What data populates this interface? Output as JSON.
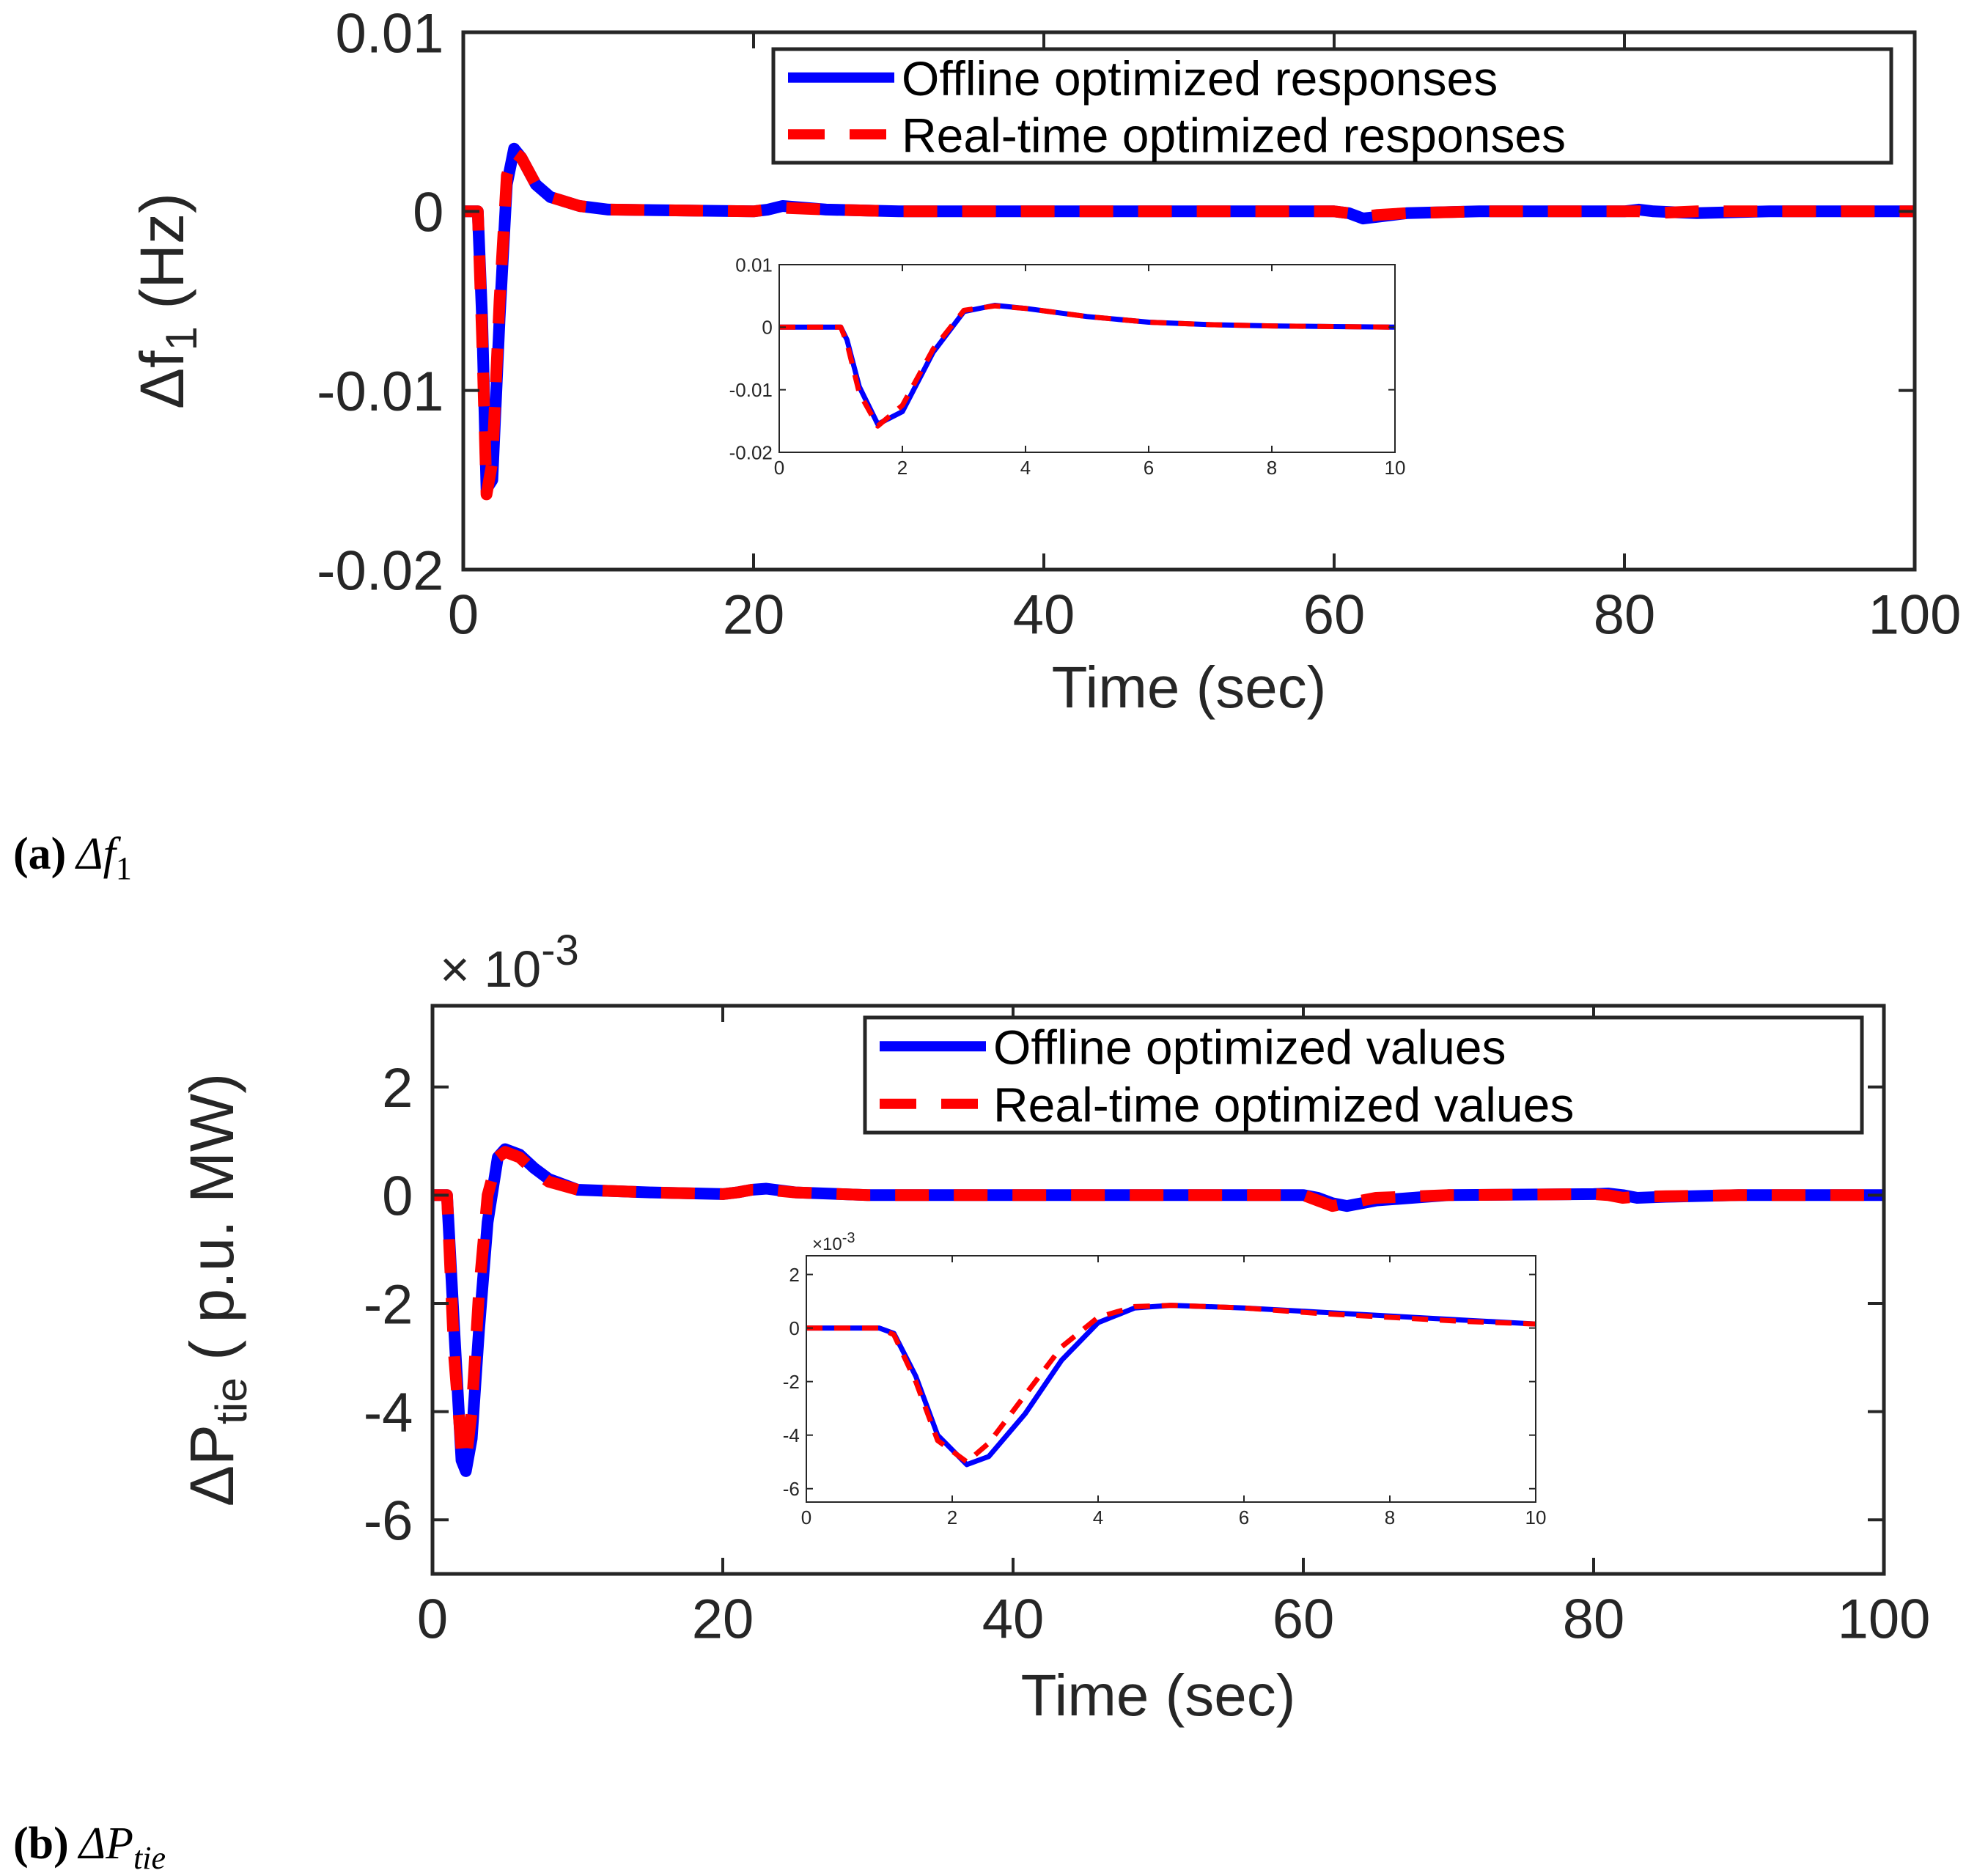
{
  "colors": {
    "offline": "#0000ff",
    "realtime": "#ff0000",
    "axis": "#262626"
  },
  "chart_data": [
    {
      "id": "a",
      "type": "line",
      "caption_label": "(a)",
      "caption_math": "Δf",
      "caption_sub": "1",
      "ylabel_main": "Δf",
      "ylabel_sub": "1",
      "ylabel_tail": " (Hz)",
      "xlabel": "Time (sec)",
      "xlim": [
        0,
        100
      ],
      "ylim": [
        -0.02,
        0.01
      ],
      "xticks": [
        0,
        20,
        40,
        60,
        80,
        100
      ],
      "xtick_labels": [
        "0",
        "20",
        "40",
        "60",
        "80",
        "100"
      ],
      "yticks": [
        -0.02,
        -0.01,
        0,
        0.01
      ],
      "ytick_labels": [
        "-0.02",
        "-0.01",
        "0",
        "0.01"
      ],
      "legend": [
        "Offline optimized responses",
        "Real-time optimized responses"
      ],
      "legend_position": "top-right",
      "series": [
        {
          "name": "Offline optimized responses",
          "x": [
            0,
            1,
            1.3,
            1.6,
            2,
            2.5,
            3,
            3.5,
            4,
            5,
            6,
            8,
            10,
            20,
            21,
            22,
            25,
            30,
            40,
            50,
            60,
            61,
            62,
            63,
            65,
            70,
            80,
            81,
            82,
            85,
            90,
            100
          ],
          "y": [
            0,
            0,
            -0.006,
            -0.0155,
            -0.015,
            -0.006,
            0.0015,
            0.0035,
            0.003,
            0.0015,
            0.0008,
            0.0003,
            0.0001,
            0,
            0.0001,
            0.0003,
            0.0001,
            0,
            0,
            0,
            0,
            -0.0001,
            -0.0004,
            -0.0003,
            -0.0001,
            0,
            0,
            0.0001,
            0,
            -0.0001,
            0,
            0
          ]
        },
        {
          "name": "Real-time optimized responses",
          "x": [
            0,
            1,
            1.3,
            1.6,
            2,
            2.5,
            3,
            3.5,
            4,
            5,
            6,
            8,
            10,
            20,
            21,
            22,
            25,
            30,
            40,
            50,
            60,
            61,
            62,
            63,
            65,
            70,
            80,
            81,
            82,
            85,
            90,
            100
          ],
          "y": [
            0,
            0,
            -0.007,
            -0.0158,
            -0.014,
            -0.005,
            0.002,
            0.0033,
            0.003,
            0.0015,
            0.0008,
            0.0003,
            0.0001,
            0,
            0.0001,
            0.0002,
            0.0001,
            0,
            0,
            0,
            0,
            -0.0001,
            -0.0003,
            -0.0002,
            -0.0001,
            0,
            0,
            0,
            -0.0001,
            0,
            0,
            0
          ]
        }
      ],
      "inset": {
        "xlim": [
          0,
          10
        ],
        "ylim": [
          -0.02,
          0.01
        ],
        "xticks": [
          0,
          2,
          4,
          6,
          8,
          10
        ],
        "xtick_labels": [
          "0",
          "2",
          "4",
          "6",
          "8",
          "10"
        ],
        "yticks": [
          -0.02,
          -0.01,
          0,
          0.01
        ],
        "ytick_labels": [
          "-0.02",
          "-0.01",
          "0",
          "0.01"
        ],
        "series": [
          {
            "name": "Offline optimized responses",
            "x": [
              0,
              1,
              1.1,
              1.3,
              1.6,
              2,
              2.5,
              3,
              3.5,
              4,
              5,
              6,
              7,
              8,
              9,
              10
            ],
            "y": [
              0,
              0,
              -0.002,
              -0.0095,
              -0.0155,
              -0.0135,
              -0.004,
              0.0025,
              0.0035,
              0.003,
              0.0017,
              0.0008,
              0.0004,
              0.0002,
              0.0001,
              0
            ]
          },
          {
            "name": "Real-time optimized responses",
            "x": [
              0,
              1,
              1.1,
              1.3,
              1.6,
              2,
              2.5,
              3,
              3.5,
              4,
              5,
              6,
              7,
              8,
              9,
              10
            ],
            "y": [
              0,
              0,
              -0.0025,
              -0.0105,
              -0.0158,
              -0.0125,
              -0.0035,
              0.0027,
              0.0034,
              0.003,
              0.0017,
              0.0008,
              0.0004,
              0.0002,
              0.0001,
              0
            ]
          }
        ]
      }
    },
    {
      "id": "b",
      "type": "line",
      "caption_label": "(b)",
      "caption_math": "ΔP",
      "caption_sub": "tie",
      "ylabel_main": "ΔP",
      "ylabel_sub": "tie",
      "ylabel_tail": " ( p.u. MW)",
      "xlabel": "Time (sec)",
      "multiplier": "× 10",
      "multiplier_exp": "-3",
      "xlim": [
        0,
        100
      ],
      "ylim": [
        -7,
        3.5
      ],
      "xticks": [
        0,
        20,
        40,
        60,
        80,
        100
      ],
      "xtick_labels": [
        "0",
        "20",
        "40",
        "60",
        "80",
        "100"
      ],
      "yticks": [
        -6,
        -4,
        -2,
        0,
        2
      ],
      "ytick_labels": [
        "-6",
        "-4",
        "-2",
        "0",
        "2"
      ],
      "legend": [
        "Offline optimized values",
        "Real-time optimized values"
      ],
      "legend_position": "top-right",
      "series": [
        {
          "name": "Offline optimized values",
          "x": [
            0,
            1,
            1.5,
            2,
            2.3,
            2.7,
            3.2,
            3.8,
            4.5,
            5,
            6,
            7,
            8,
            10,
            15,
            20,
            21,
            22,
            23,
            25,
            30,
            40,
            50,
            60,
            61,
            62,
            63,
            65,
            70,
            80,
            81,
            82,
            83,
            85,
            90,
            100
          ],
          "y": [
            0,
            0,
            -2.5,
            -4.9,
            -5.1,
            -4.5,
            -2.5,
            -0.5,
            0.7,
            0.85,
            0.75,
            0.5,
            0.3,
            0.1,
            0.05,
            0.02,
            0.05,
            0.1,
            0.12,
            0.05,
            0,
            0,
            0,
            0,
            -0.05,
            -0.15,
            -0.2,
            -0.1,
            0,
            0.02,
            0.03,
            0,
            -0.05,
            -0.03,
            0,
            0
          ]
        },
        {
          "name": "Real-time optimized values",
          "x": [
            0,
            1,
            1.5,
            2,
            2.3,
            2.7,
            3.2,
            3.8,
            4.5,
            5,
            6,
            7,
            8,
            10,
            15,
            20,
            21,
            22,
            23,
            25,
            30,
            40,
            50,
            60,
            61,
            62,
            63,
            65,
            70,
            80,
            81,
            82,
            83,
            85,
            90,
            100
          ],
          "y": [
            0,
            0,
            -3,
            -4.7,
            -4.9,
            -4,
            -1.8,
            0,
            0.7,
            0.8,
            0.7,
            0.45,
            0.25,
            0.1,
            0.05,
            0.02,
            0.05,
            0.1,
            0.1,
            0.05,
            0,
            0,
            0,
            0,
            -0.1,
            -0.2,
            -0.15,
            -0.05,
            0,
            0.02,
            0,
            -0.05,
            -0.03,
            -0.02,
            0,
            0
          ]
        }
      ],
      "inset": {
        "multiplier": "×10",
        "multiplier_exp": "-3",
        "xlim": [
          0,
          10
        ],
        "ylim": [
          -6.5,
          2.7
        ],
        "xticks": [
          0,
          2,
          4,
          6,
          8,
          10
        ],
        "xtick_labels": [
          "0",
          "2",
          "4",
          "6",
          "8",
          "10"
        ],
        "yticks": [
          -6,
          -4,
          -2,
          0,
          2
        ],
        "ytick_labels": [
          "-6",
          "-4",
          "-2",
          "0",
          "2"
        ],
        "series": [
          {
            "name": "Offline optimized values",
            "x": [
              0,
              1,
              1.2,
              1.5,
              1.8,
              2.2,
              2.5,
              3,
              3.5,
              4,
              4.5,
              5,
              6,
              7,
              8,
              9,
              10
            ],
            "y": [
              0,
              0,
              -0.2,
              -1.8,
              -4,
              -5.1,
              -4.8,
              -3.2,
              -1.2,
              0.2,
              0.75,
              0.85,
              0.75,
              0.6,
              0.45,
              0.3,
              0.15
            ]
          },
          {
            "name": "Real-time optimized values",
            "x": [
              0,
              1,
              1.2,
              1.5,
              1.8,
              2.2,
              2.5,
              3,
              3.5,
              4,
              4.5,
              5,
              6,
              7,
              8,
              9,
              10
            ],
            "y": [
              0,
              0,
              -0.25,
              -2,
              -4.2,
              -5,
              -4.3,
              -2.5,
              -0.7,
              0.4,
              0.8,
              0.85,
              0.75,
              0.55,
              0.4,
              0.25,
              0.15
            ]
          }
        ]
      }
    }
  ]
}
